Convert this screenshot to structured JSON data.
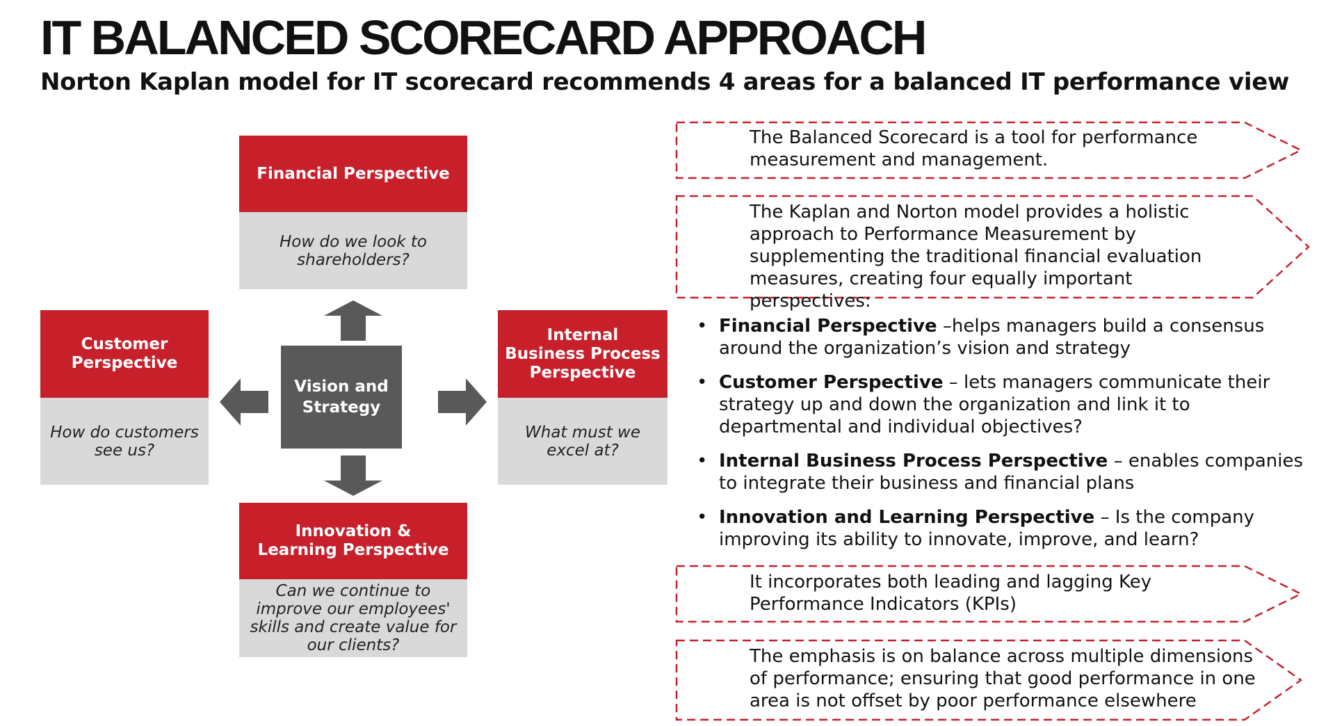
{
  "title": "IT BALANCED SCORECARD APPROACH",
  "subtitle": "Norton Kaplan model for IT scorecard recommends 4 areas for a balanced IT performance view",
  "diagram": {
    "center": "Vision and Strategy",
    "financial": {
      "title": "Financial Perspective",
      "question": "How do we look to shareholders?"
    },
    "customer": {
      "title": "Customer Perspective",
      "question": "How do customers see us?"
    },
    "internal": {
      "title": "Internal Business Process Perspective",
      "question": "What must we excel at?"
    },
    "innovation": {
      "title": "Innovation & Learning Perspective",
      "question": "Can we continue to improve our employees' skills and create value for our clients?"
    }
  },
  "callouts": [
    "The Balanced Scorecard is a tool for performance measurement and management.",
    "The Kaplan and Norton model provides a holistic approach to Performance Measurement by supplementing the traditional financial evaluation measures, creating four equally important perspectives:",
    "It incorporates both leading and lagging Key Performance Indicators (KPIs)",
    "The emphasis is on balance across multiple dimensions of performance; ensuring that good performance in one area is not offset by poor performance elsewhere"
  ],
  "bullets": [
    {
      "label": "Financial Perspective",
      "text": " –helps managers build a consensus around the organization’s vision and strategy"
    },
    {
      "label": "Customer Perspective",
      "text": " – lets managers communicate their strategy up and down the organization and link it to departmental and individual objectives?"
    },
    {
      "label": "Internal Business Process Perspective",
      "text": " – enables companies to integrate their business and financial plans"
    },
    {
      "label": "Innovation and Learning Perspective",
      "text": " – Is the company improving its ability to innovate, improve, and learn?"
    }
  ],
  "bullet_glyph": "•",
  "colors": {
    "accent": "#c8202b",
    "question_bg": "#d9d9d9",
    "center_bg": "#595959"
  }
}
